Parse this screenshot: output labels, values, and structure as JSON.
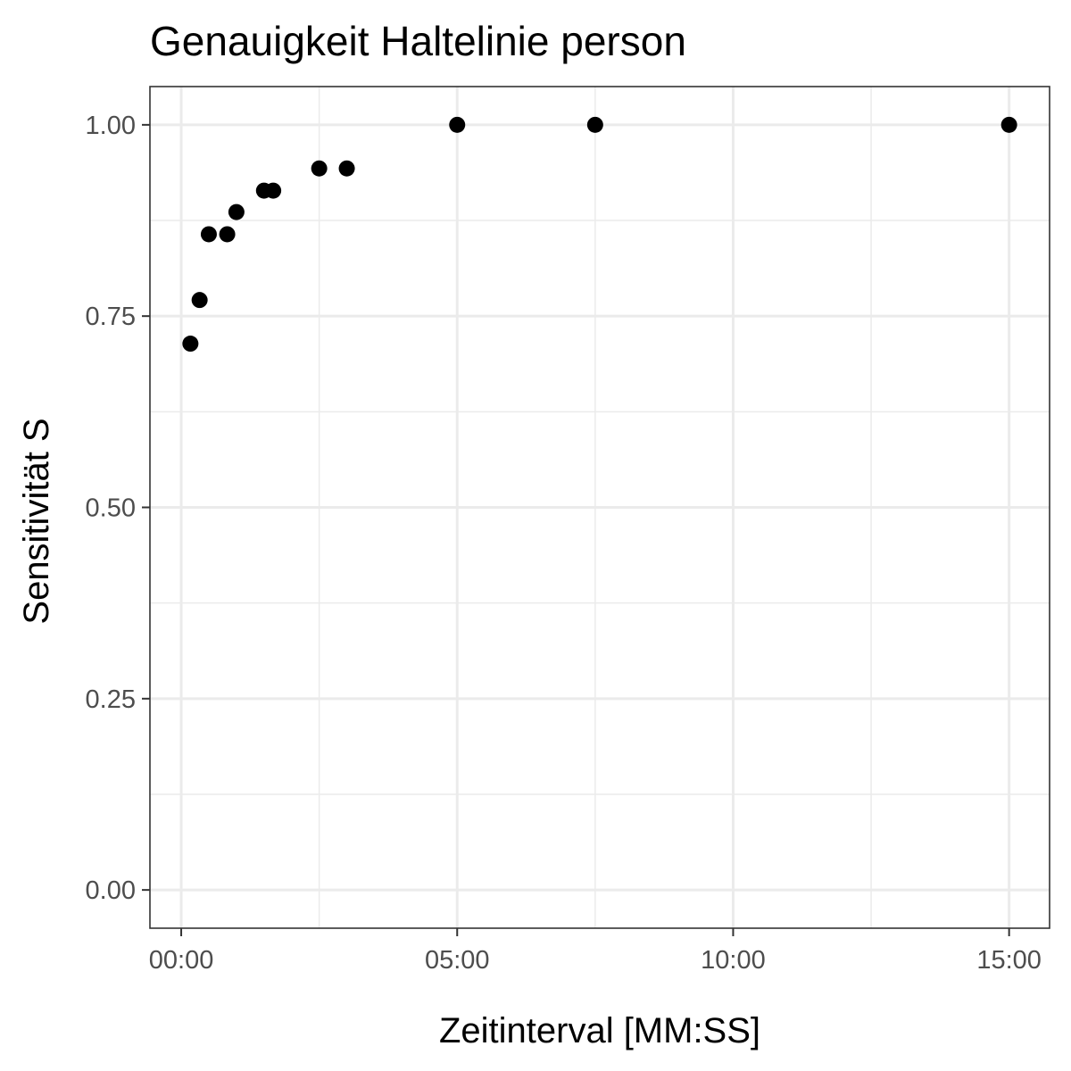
{
  "chart_data": {
    "type": "scatter",
    "title": "Genauigkeit Haltelinie person",
    "xlabel": "Zeitinterval [MM:SS]",
    "ylabel": "Sensitivität S",
    "x_ticks": [
      "00:00",
      "05:00",
      "10:00",
      "15:00"
    ],
    "y_ticks": [
      "0.00",
      "0.25",
      "0.50",
      "0.75",
      "1.00"
    ],
    "xlim": [
      "-00:34",
      "15:44"
    ],
    "ylim": [
      -0.05,
      1.05
    ],
    "grid": true,
    "point_color": "#000000",
    "series": [
      {
        "x": [
          "00:10",
          "00:20",
          "00:30",
          "00:50",
          "01:00",
          "01:30",
          "01:40",
          "02:30",
          "03:00",
          "05:00",
          "07:30",
          "15:00"
        ],
        "y": [
          0.714,
          0.771,
          0.857,
          0.857,
          0.886,
          0.914,
          0.914,
          0.943,
          0.943,
          1.0,
          1.0,
          1.0
        ]
      }
    ]
  }
}
